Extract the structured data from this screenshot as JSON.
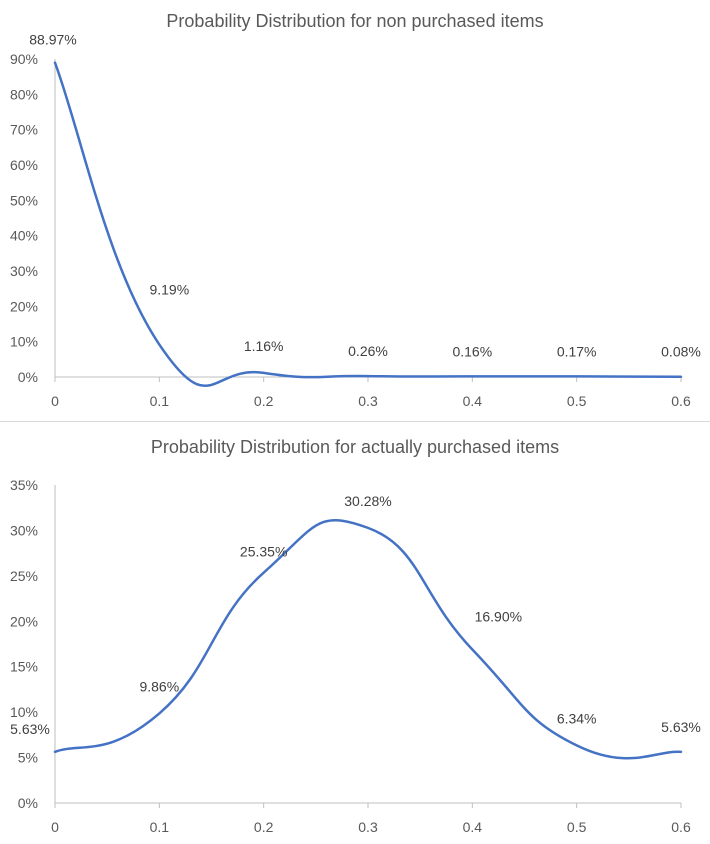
{
  "chart_data": [
    {
      "type": "line",
      "title": "Probability Distribution for non purchased items",
      "x": [
        0,
        0.1,
        0.2,
        0.3,
        0.4,
        0.5,
        0.6
      ],
      "series": [
        {
          "name": "",
          "values": [
            88.97,
            9.19,
            1.16,
            0.26,
            0.16,
            0.17,
            0.08
          ],
          "labels": [
            "88.97%",
            "9.19%",
            "1.16%",
            "0.26%",
            "0.16%",
            "0.17%",
            "0.08%"
          ]
        }
      ],
      "xlim": [
        0,
        0.6
      ],
      "ylim": [
        0,
        90
      ],
      "xticks": [
        "0",
        "0.1",
        "0.2",
        "0.3",
        "0.4",
        "0.5",
        "0.6"
      ],
      "yticks": [
        "0%",
        "10%",
        "20%",
        "30%",
        "40%",
        "50%",
        "60%",
        "70%",
        "80%",
        "90%"
      ],
      "smooth": true,
      "grid": false,
      "legend": "none",
      "line_color": "#4472C4"
    },
    {
      "type": "line",
      "title": "Probability Distribution for actually purchased items",
      "x": [
        0,
        0.1,
        0.2,
        0.3,
        0.4,
        0.5,
        0.6
      ],
      "series": [
        {
          "name": "",
          "values": [
            5.63,
            9.86,
            25.35,
            30.28,
            16.9,
            6.34,
            5.63
          ],
          "labels": [
            "5.63%",
            "9.86%",
            "25.35%",
            "30.28%",
            "16.90%",
            "6.34%",
            "5.63%"
          ]
        }
      ],
      "xlim": [
        0,
        0.6
      ],
      "ylim": [
        0,
        35
      ],
      "xticks": [
        "0",
        "0.1",
        "0.2",
        "0.3",
        "0.4",
        "0.5",
        "0.6"
      ],
      "yticks": [
        "0%",
        "5%",
        "10%",
        "15%",
        "20%",
        "25%",
        "30%",
        "35%"
      ],
      "smooth": true,
      "grid": false,
      "legend": "none",
      "line_color": "#4472C4"
    }
  ]
}
